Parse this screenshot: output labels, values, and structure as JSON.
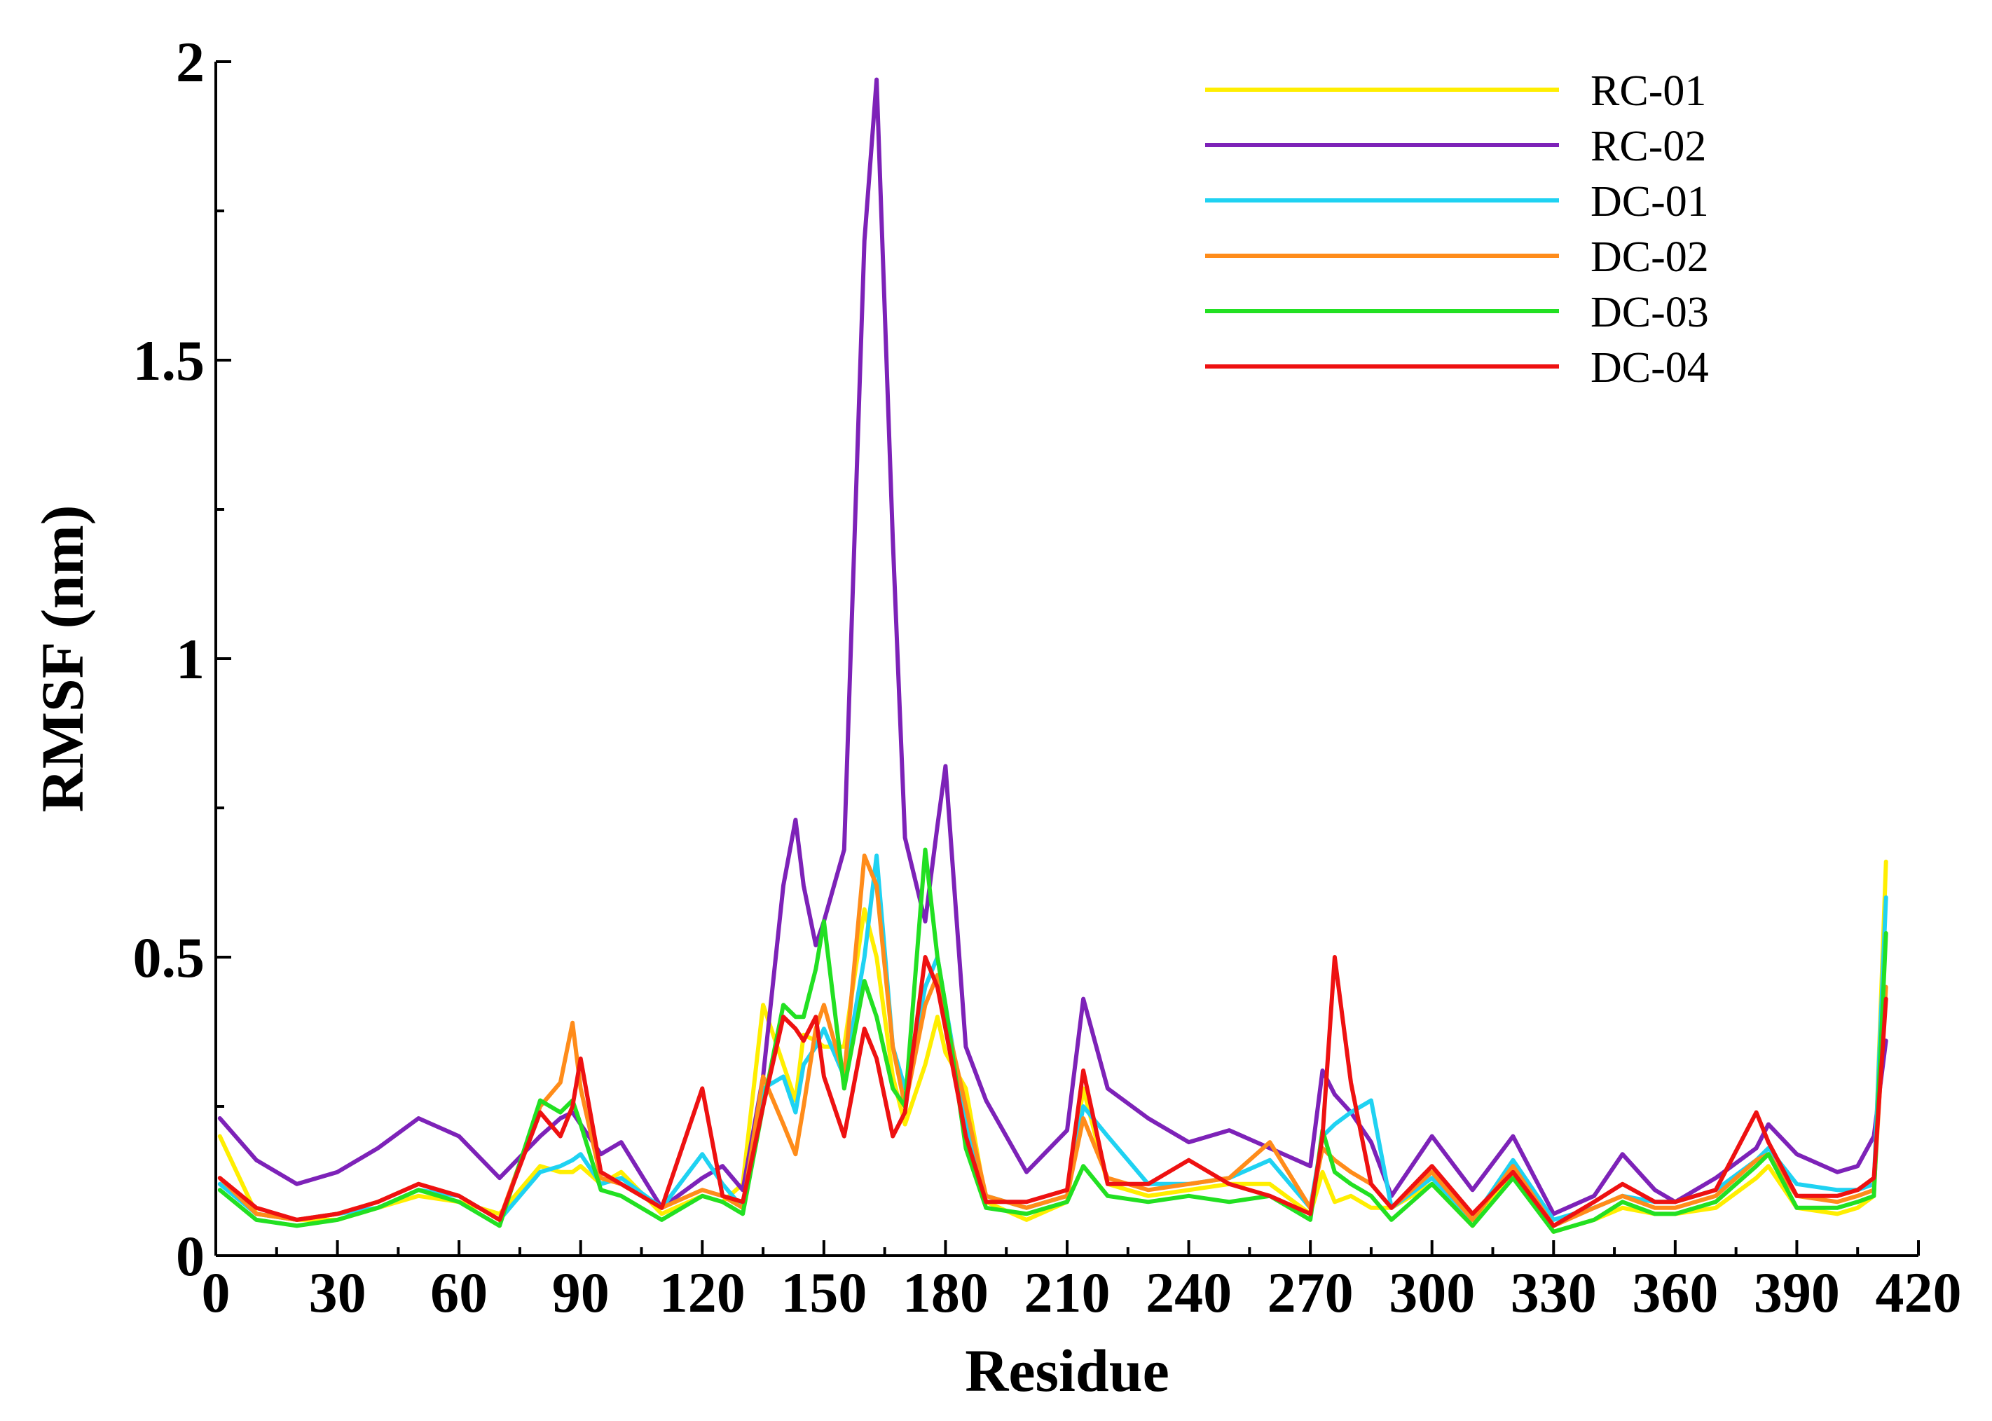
{
  "chart_data": {
    "type": "line",
    "title": "",
    "xlabel": "Residue",
    "ylabel": "RMSF (nm)",
    "xlim": [
      0,
      420
    ],
    "ylim": [
      0,
      2
    ],
    "xticks": [
      "0",
      "30",
      "60",
      "90",
      "120",
      "150",
      "180",
      "210",
      "240",
      "270",
      "300",
      "330",
      "360",
      "390",
      "420"
    ],
    "yticks": [
      "0",
      "0.5",
      "1",
      "1.5",
      "2"
    ],
    "grid": false,
    "legend_position": "top-right",
    "x": [
      1,
      10,
      20,
      30,
      40,
      50,
      60,
      70,
      80,
      85,
      88,
      90,
      95,
      100,
      110,
      120,
      125,
      130,
      135,
      140,
      143,
      145,
      148,
      150,
      155,
      160,
      163,
      167,
      170,
      175,
      178,
      180,
      185,
      190,
      200,
      210,
      214,
      220,
      230,
      240,
      250,
      260,
      270,
      273,
      276,
      280,
      285,
      290,
      300,
      310,
      320,
      330,
      340,
      347,
      355,
      360,
      370,
      380,
      383,
      390,
      400,
      405,
      409,
      412
    ],
    "series": [
      {
        "name": "RC-01",
        "color": "#ffee00",
        "values": [
          0.2,
          0.07,
          0.06,
          0.06,
          0.08,
          0.1,
          0.09,
          0.07,
          0.15,
          0.14,
          0.14,
          0.15,
          0.12,
          0.14,
          0.07,
          0.1,
          0.09,
          0.12,
          0.42,
          0.32,
          0.26,
          0.37,
          0.36,
          0.35,
          0.35,
          0.58,
          0.5,
          0.3,
          0.22,
          0.32,
          0.4,
          0.34,
          0.28,
          0.09,
          0.06,
          0.09,
          0.28,
          0.12,
          0.1,
          0.11,
          0.12,
          0.12,
          0.07,
          0.14,
          0.09,
          0.1,
          0.08,
          0.08,
          0.12,
          0.05,
          0.14,
          0.04,
          0.06,
          0.08,
          0.07,
          0.07,
          0.08,
          0.13,
          0.15,
          0.08,
          0.07,
          0.08,
          0.1,
          0.66
        ]
      },
      {
        "name": "RC-02",
        "color": "#7d22b8",
        "values": [
          0.23,
          0.16,
          0.12,
          0.14,
          0.18,
          0.23,
          0.2,
          0.13,
          0.2,
          0.23,
          0.24,
          0.22,
          0.17,
          0.19,
          0.08,
          0.13,
          0.15,
          0.11,
          0.3,
          0.62,
          0.73,
          0.62,
          0.52,
          0.56,
          0.68,
          1.7,
          1.97,
          1.2,
          0.7,
          0.56,
          0.72,
          0.82,
          0.35,
          0.26,
          0.14,
          0.21,
          0.43,
          0.28,
          0.23,
          0.19,
          0.21,
          0.18,
          0.15,
          0.31,
          0.27,
          0.24,
          0.19,
          0.1,
          0.2,
          0.11,
          0.2,
          0.07,
          0.1,
          0.17,
          0.11,
          0.09,
          0.13,
          0.18,
          0.22,
          0.17,
          0.14,
          0.15,
          0.2,
          0.36
        ]
      },
      {
        "name": "DC-01",
        "color": "#1fd2f2",
        "values": [
          0.12,
          0.07,
          0.06,
          0.07,
          0.08,
          0.11,
          0.1,
          0.06,
          0.14,
          0.15,
          0.16,
          0.17,
          0.12,
          0.13,
          0.08,
          0.17,
          0.12,
          0.08,
          0.28,
          0.3,
          0.24,
          0.32,
          0.35,
          0.38,
          0.3,
          0.5,
          0.67,
          0.35,
          0.28,
          0.45,
          0.5,
          0.42,
          0.22,
          0.1,
          0.08,
          0.1,
          0.25,
          0.2,
          0.12,
          0.12,
          0.13,
          0.16,
          0.08,
          0.2,
          0.22,
          0.24,
          0.26,
          0.08,
          0.13,
          0.06,
          0.16,
          0.06,
          0.08,
          0.1,
          0.09,
          0.09,
          0.11,
          0.16,
          0.18,
          0.12,
          0.11,
          0.11,
          0.12,
          0.6
        ]
      },
      {
        "name": "DC-02",
        "color": "#ff8c1a",
        "values": [
          0.13,
          0.07,
          0.06,
          0.07,
          0.09,
          0.12,
          0.1,
          0.06,
          0.25,
          0.29,
          0.39,
          0.28,
          0.13,
          0.12,
          0.08,
          0.11,
          0.1,
          0.08,
          0.3,
          0.22,
          0.17,
          0.25,
          0.38,
          0.42,
          0.3,
          0.67,
          0.62,
          0.35,
          0.25,
          0.42,
          0.47,
          0.4,
          0.25,
          0.1,
          0.08,
          0.1,
          0.23,
          0.13,
          0.11,
          0.12,
          0.13,
          0.19,
          0.08,
          0.18,
          0.16,
          0.14,
          0.12,
          0.08,
          0.14,
          0.06,
          0.15,
          0.05,
          0.08,
          0.1,
          0.08,
          0.08,
          0.1,
          0.16,
          0.17,
          0.1,
          0.09,
          0.1,
          0.11,
          0.45
        ]
      },
      {
        "name": "DC-03",
        "color": "#22e022",
        "values": [
          0.11,
          0.06,
          0.05,
          0.06,
          0.08,
          0.11,
          0.09,
          0.05,
          0.26,
          0.24,
          0.26,
          0.22,
          0.11,
          0.1,
          0.06,
          0.1,
          0.09,
          0.07,
          0.25,
          0.42,
          0.4,
          0.4,
          0.48,
          0.56,
          0.28,
          0.46,
          0.4,
          0.28,
          0.25,
          0.68,
          0.5,
          0.42,
          0.18,
          0.08,
          0.07,
          0.09,
          0.15,
          0.1,
          0.09,
          0.1,
          0.09,
          0.1,
          0.06,
          0.21,
          0.14,
          0.12,
          0.1,
          0.06,
          0.12,
          0.05,
          0.13,
          0.04,
          0.06,
          0.09,
          0.07,
          0.07,
          0.09,
          0.15,
          0.17,
          0.08,
          0.08,
          0.09,
          0.1,
          0.54
        ]
      },
      {
        "name": "DC-04",
        "color": "#ee1111",
        "values": [
          0.13,
          0.08,
          0.06,
          0.07,
          0.09,
          0.12,
          0.1,
          0.06,
          0.24,
          0.2,
          0.25,
          0.33,
          0.14,
          0.12,
          0.08,
          0.28,
          0.1,
          0.09,
          0.25,
          0.4,
          0.38,
          0.36,
          0.4,
          0.3,
          0.2,
          0.38,
          0.33,
          0.2,
          0.24,
          0.5,
          0.45,
          0.38,
          0.2,
          0.09,
          0.09,
          0.11,
          0.31,
          0.12,
          0.12,
          0.16,
          0.12,
          0.1,
          0.07,
          0.2,
          0.5,
          0.29,
          0.12,
          0.08,
          0.15,
          0.07,
          0.14,
          0.05,
          0.09,
          0.12,
          0.09,
          0.09,
          0.11,
          0.24,
          0.19,
          0.1,
          0.1,
          0.11,
          0.13,
          0.43
        ]
      }
    ]
  }
}
